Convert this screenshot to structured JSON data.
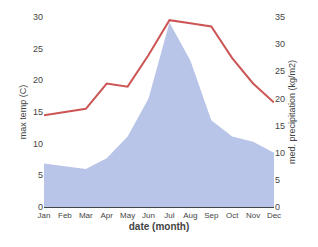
{
  "chart_data": {
    "type": "line",
    "categories": [
      "Jan",
      "Feb",
      "Mar",
      "Apr",
      "May",
      "Jun",
      "Jul",
      "Aug",
      "Sep",
      "Oct",
      "Nov",
      "Dec"
    ],
    "series": [
      {
        "type": "area",
        "color": "#b8c4e8",
        "axis": "y2",
        "values": [
          8.0,
          7.5,
          7.0,
          9.0,
          13.0,
          20.0,
          34.0,
          27.0,
          16.0,
          13.0,
          12.0,
          10.0
        ]
      },
      {
        "type": "line",
        "color": "#cc5555",
        "values": [
          14.5,
          15.0,
          15.5,
          19.5,
          19.0,
          24.0,
          29.5,
          29.0,
          28.5,
          23.5,
          19.5,
          16.5
        ]
      }
    ],
    "xlabel": "date (month)",
    "ylabel": "max temp (C)",
    "y2label": "med. precipitation (kg/m2)",
    "ylim": [
      0,
      30
    ],
    "yticks": [
      0,
      5,
      10,
      15,
      20,
      25,
      30
    ],
    "y2lim": [
      0,
      35
    ],
    "y2ticks": [
      0,
      5,
      10,
      15,
      20,
      25,
      30,
      35
    ],
    "grid": false
  }
}
